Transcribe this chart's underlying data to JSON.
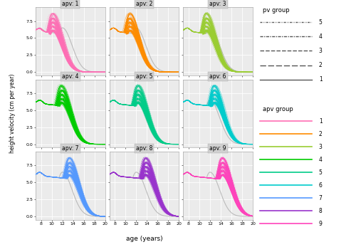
{
  "apv_groups": [
    1,
    2,
    3,
    4,
    5,
    6,
    7,
    8,
    9
  ],
  "apv_colors": {
    "1": "#FF6EB4",
    "2": "#FF8C00",
    "3": "#9ACD32",
    "4": "#00CC00",
    "5": "#00CC88",
    "6": "#00CCCC",
    "7": "#5599FF",
    "8": "#9933CC",
    "9": "#FF44BB"
  },
  "x_min": 7,
  "x_max": 20,
  "y_min": -0.5,
  "y_max": 9.5,
  "x_ticks": [
    8,
    10,
    12,
    14,
    16,
    18,
    20
  ],
  "y_ticks": [
    0.0,
    2.5,
    5.0,
    7.5
  ],
  "xlabel": "age (years)",
  "ylabel": "height velocity (cm per year)",
  "background_color": "#EBEBEB",
  "grid_color": "#FFFFFF",
  "panel_title_bg": "#D0D0D0",
  "apv_peak_ages": {
    "1": 10.2,
    "2": 10.8,
    "3": 11.3,
    "4": 11.8,
    "5": 12.3,
    "6": 12.8,
    "7": 13.3,
    "8": 13.8,
    "9": 14.3
  },
  "pv_peak_heights": {
    "5": 8.6,
    "4": 7.9,
    "3": 7.3,
    "2": 6.7,
    "1": 6.1
  },
  "ref_apv": 12.0,
  "ref_pv": 6.5,
  "n_scatter": 30
}
